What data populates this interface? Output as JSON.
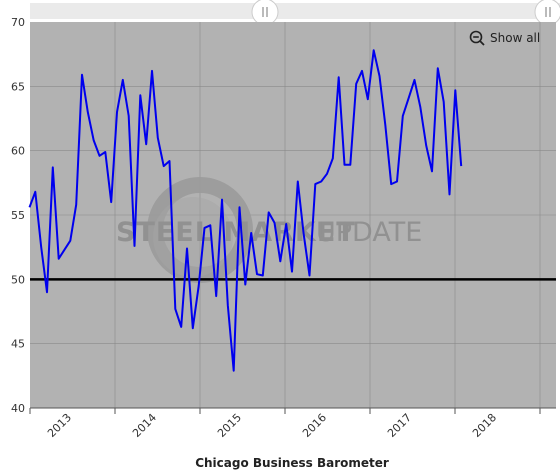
{
  "chart_data": {
    "type": "line",
    "title": "",
    "xlabel": "Chicago Business Barometer",
    "ylabel": "",
    "ylim": [
      40,
      70
    ],
    "y_ticks": [
      40,
      45,
      50,
      55,
      60,
      65,
      70
    ],
    "x_tick_labels": [
      "2013",
      "2014",
      "2015",
      "2016",
      "2017",
      "2018"
    ],
    "reference_line": 50,
    "grid": true,
    "series": [
      {
        "color": "#0000ee",
        "points": [
          [
            "2012-10",
            55.6
          ],
          [
            "2012-11",
            56.8
          ],
          [
            "2012-12",
            52.5
          ],
          [
            "2013-01",
            49.0
          ],
          [
            "2013-02",
            58.7
          ],
          [
            "2013-03",
            51.6
          ],
          [
            "2013-04",
            52.3
          ],
          [
            "2013-05",
            53.0
          ],
          [
            "2013-06",
            55.8
          ],
          [
            "2013-07",
            65.9
          ],
          [
            "2013-08",
            63.0
          ],
          [
            "2013-09",
            60.8
          ],
          [
            "2013-10",
            59.6
          ],
          [
            "2013-11",
            59.9
          ],
          [
            "2013-12",
            56.0
          ],
          [
            "2014-01",
            63.0
          ],
          [
            "2014-02",
            65.5
          ],
          [
            "2014-03",
            62.7
          ],
          [
            "2014-04",
            52.6
          ],
          [
            "2014-05",
            64.3
          ],
          [
            "2014-06",
            60.5
          ],
          [
            "2014-07",
            66.2
          ],
          [
            "2014-08",
            61.0
          ],
          [
            "2014-09",
            58.8
          ],
          [
            "2014-10",
            59.2
          ],
          [
            "2014-11",
            47.7
          ],
          [
            "2014-12",
            46.3
          ],
          [
            "2015-01",
            52.4
          ],
          [
            "2015-02",
            46.2
          ],
          [
            "2015-03",
            49.5
          ],
          [
            "2015-04",
            54.0
          ],
          [
            "2015-05",
            54.2
          ],
          [
            "2015-06",
            48.7
          ],
          [
            "2015-07",
            56.2
          ],
          [
            "2015-08",
            48.0
          ],
          [
            "2015-09",
            42.9
          ],
          [
            "2015-10",
            55.6
          ],
          [
            "2015-11",
            49.6
          ],
          [
            "2015-12",
            53.6
          ],
          [
            "2016-01",
            50.4
          ],
          [
            "2016-02",
            50.3
          ],
          [
            "2016-03",
            55.2
          ],
          [
            "2016-04",
            54.4
          ],
          [
            "2016-05",
            51.4
          ],
          [
            "2016-06",
            54.3
          ],
          [
            "2016-07",
            50.6
          ],
          [
            "2016-08",
            57.6
          ],
          [
            "2016-09",
            53.5
          ],
          [
            "2016-10",
            50.3
          ],
          [
            "2016-11",
            57.4
          ],
          [
            "2016-12",
            57.6
          ],
          [
            "2017-01",
            58.2
          ],
          [
            "2017-02",
            59.4
          ],
          [
            "2017-03",
            65.7
          ],
          [
            "2017-04",
            58.9
          ],
          [
            "2017-05",
            58.9
          ],
          [
            "2017-06",
            65.2
          ],
          [
            "2017-07",
            66.2
          ],
          [
            "2017-08",
            64.0
          ],
          [
            "2017-09",
            67.8
          ],
          [
            "2017-10",
            65.8
          ],
          [
            "2017-11",
            62.0
          ],
          [
            "2017-12",
            57.4
          ],
          [
            "2018-01",
            57.6
          ],
          [
            "2018-02",
            62.7
          ],
          [
            "2018-03",
            64.1
          ],
          [
            "2018-04",
            65.5
          ],
          [
            "2018-05",
            63.4
          ],
          [
            "2018-06",
            60.4
          ],
          [
            "2018-07",
            58.4
          ],
          [
            "2018-08",
            66.4
          ],
          [
            "2018-09",
            63.8
          ],
          [
            "2018-10",
            56.6
          ],
          [
            "2018-11",
            64.7
          ],
          [
            "2018-12",
            58.8
          ]
        ]
      }
    ]
  },
  "controls": {
    "show_all_label": "Show all",
    "zoom_icon": "zoom-out-icon",
    "scrollbar_handle_icon": "drag-handle-icon"
  },
  "watermark": {
    "text_main": "STEEL MARKET",
    "text_secondary": "UPDATE"
  },
  "colors": {
    "plot_background": "#b2b2b2",
    "series_line": "#0000ee",
    "reference_line": "#000000",
    "gridline": "#8a8a8a"
  }
}
